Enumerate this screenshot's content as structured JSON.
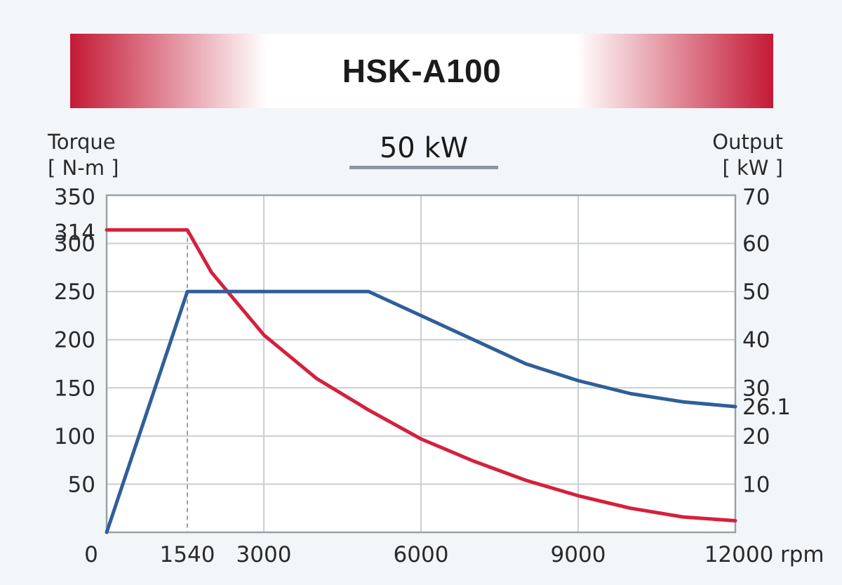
{
  "banner": {
    "title": "HSK-A100",
    "gradient_edge_color": "#c41935",
    "gradient_center_color": "#ffffff"
  },
  "power_label": "50 kW",
  "left_axis": {
    "label": "Torque",
    "unit": "[ N-m ]"
  },
  "right_axis": {
    "label": "Output",
    "unit": "[ kW ]"
  },
  "chart_data": {
    "type": "line",
    "title": "",
    "xlabel": "rpm",
    "ylabel": "Torque [ N-m ]",
    "y2label": "Output [ kW ]",
    "xlim": [
      0,
      12000
    ],
    "ylim": [
      0,
      350
    ],
    "y2lim": [
      0,
      70
    ],
    "grid": true,
    "x_ticks": [
      {
        "value": 0,
        "label": "0"
      },
      {
        "value": 1540,
        "label": "1540"
      },
      {
        "value": 3000,
        "label": "3000"
      },
      {
        "value": 6000,
        "label": "6000"
      },
      {
        "value": 9000,
        "label": "9000"
      },
      {
        "value": 12000,
        "label": "12000"
      }
    ],
    "x_unit_label": "rpm",
    "x_grid": [
      3000,
      6000,
      9000
    ],
    "y_ticks": [
      {
        "value": 50,
        "label": "50"
      },
      {
        "value": 100,
        "label": "100"
      },
      {
        "value": 150,
        "label": "150"
      },
      {
        "value": 200,
        "label": "200"
      },
      {
        "value": 250,
        "label": "250"
      },
      {
        "value": 300,
        "label": "300"
      },
      {
        "value": 314,
        "label": "314"
      },
      {
        "value": 350,
        "label": "350"
      }
    ],
    "y_grid": [
      50,
      100,
      150,
      200,
      250,
      300
    ],
    "y2_ticks": [
      {
        "value": 10,
        "label": "10"
      },
      {
        "value": 20,
        "label": "20"
      },
      {
        "value": 26.1,
        "label": "26.1"
      },
      {
        "value": 30,
        "label": "30"
      },
      {
        "value": 40,
        "label": "40"
      },
      {
        "value": 50,
        "label": "50"
      },
      {
        "value": 60,
        "label": "60"
      },
      {
        "value": 70,
        "label": "70"
      }
    ],
    "reference_line_x": 1540,
    "series": [
      {
        "axis": "left",
        "color": "#d4213d",
        "x": [
          0,
          1540,
          2000,
          3000,
          4000,
          5000,
          6000,
          7000,
          8000,
          9000,
          10000,
          11000,
          12000
        ],
        "y": [
          314,
          314,
          270,
          205,
          160,
          127,
          97,
          74,
          54,
          38,
          25,
          16,
          12
        ]
      },
      {
        "axis": "right",
        "color": "#2f5f98",
        "x": [
          0,
          1540,
          5000,
          6000,
          7000,
          8000,
          9000,
          10000,
          11000,
          12000
        ],
        "y": [
          0,
          50,
          50,
          45,
          40,
          35,
          31.5,
          28.8,
          27.1,
          26.1
        ]
      }
    ]
  }
}
